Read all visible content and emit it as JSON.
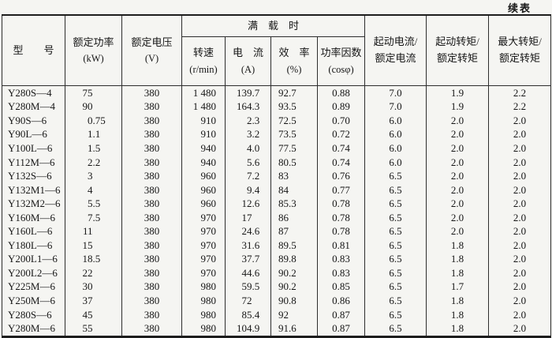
{
  "page": {
    "continued_label": "续表"
  },
  "table": {
    "header": {
      "model": "型　　号",
      "rated_power": {
        "l1": "额定功率",
        "l2": "(kW)"
      },
      "rated_voltage": {
        "l1": "额定电压",
        "l2": "(V)"
      },
      "full_load_group": "满　载　时",
      "speed": {
        "l1": "转速",
        "l2": "(r/min)"
      },
      "current": {
        "l1": "电　流",
        "l2": "(A)"
      },
      "efficiency": {
        "l1": "效　率",
        "l2": "(%)"
      },
      "power_factor": {
        "l1": "功率因数",
        "l2": "(cosφ)"
      },
      "start_current_ratio": {
        "l1": "起动电流/",
        "l2": "额定电流"
      },
      "start_torque_ratio": {
        "l1": "起动转矩/",
        "l2": "额定转矩"
      },
      "max_torque_ratio": {
        "l1": "最大转矩/",
        "l2": "额定转矩"
      }
    },
    "columns": [
      "型号",
      "额定功率(kW)",
      "额定电压(V)",
      "转速(r/min)",
      "电流(A)",
      "效率(%)",
      "功率因数(cosφ)",
      "起动电流/额定电流",
      "起动转矩/额定转矩",
      "最大转矩/额定转矩"
    ],
    "rows": [
      [
        "Y280S—4",
        "75",
        "380",
        "1 480",
        "139.7",
        "92.7",
        "0.88",
        "7.0",
        "1.9",
        "2.2"
      ],
      [
        "Y280M—4",
        "90",
        "380",
        "1 480",
        "164.3",
        "93.5",
        "0.89",
        "7.0",
        "1.9",
        "2.2"
      ],
      [
        "Y90S—6",
        "0.75",
        "380",
        "910",
        "2.3",
        "72.5",
        "0.70",
        "6.0",
        "2.0",
        "2.0"
      ],
      [
        "Y90L—6",
        "1.1",
        "380",
        "910",
        "3.2",
        "73.5",
        "0.72",
        "6.0",
        "2.0",
        "2.0"
      ],
      [
        "Y100L—6",
        "1.5",
        "380",
        "940",
        "4.0",
        "77.5",
        "0.74",
        "6.0",
        "2.0",
        "2.0"
      ],
      [
        "Y112M—6",
        "2.2",
        "380",
        "940",
        "5.6",
        "80.5",
        "0.74",
        "6.0",
        "2.0",
        "2.0"
      ],
      [
        "Y132S—6",
        "3",
        "380",
        "960",
        "7.2",
        "83",
        "0.76",
        "6.5",
        "2.0",
        "2.0"
      ],
      [
        "Y132M1—6",
        "4",
        "380",
        "960",
        "9.4",
        "84",
        "0.77",
        "6.5",
        "2.0",
        "2.0"
      ],
      [
        "Y132M2—6",
        "5.5",
        "380",
        "960",
        "12.6",
        "85.3",
        "0.78",
        "6.5",
        "2.0",
        "2.0"
      ],
      [
        "Y160M—6",
        "7.5",
        "380",
        "970",
        "17",
        "86",
        "0.78",
        "6.5",
        "2.0",
        "2.0"
      ],
      [
        "Y160L—6",
        "11",
        "380",
        "970",
        "24.6",
        "87",
        "0.78",
        "6.5",
        "2.0",
        "2.0"
      ],
      [
        "Y180L—6",
        "15",
        "380",
        "970",
        "31.6",
        "89.5",
        "0.81",
        "6.5",
        "1.8",
        "2.0"
      ],
      [
        "Y200L1—6",
        "18.5",
        "380",
        "970",
        "37.7",
        "89.8",
        "0.83",
        "6.5",
        "1.8",
        "2.0"
      ],
      [
        "Y200L2—6",
        "22",
        "380",
        "970",
        "44.6",
        "90.2",
        "0.83",
        "6.5",
        "1.8",
        "2.0"
      ],
      [
        "Y225M—6",
        "30",
        "380",
        "980",
        "59.5",
        "90.2",
        "0.85",
        "6.5",
        "1.7",
        "2.0"
      ],
      [
        "Y250M—6",
        "37",
        "380",
        "980",
        "72",
        "90.8",
        "0.86",
        "6.5",
        "1.8",
        "2.0"
      ],
      [
        "Y280S—6",
        "45",
        "380",
        "980",
        "85.4",
        "92",
        "0.87",
        "6.5",
        "1.8",
        "2.0"
      ],
      [
        "Y280M—6",
        "55",
        "380",
        "980",
        "104.9",
        "91.6",
        "0.87",
        "6.5",
        "1.8",
        "2.0"
      ]
    ]
  }
}
